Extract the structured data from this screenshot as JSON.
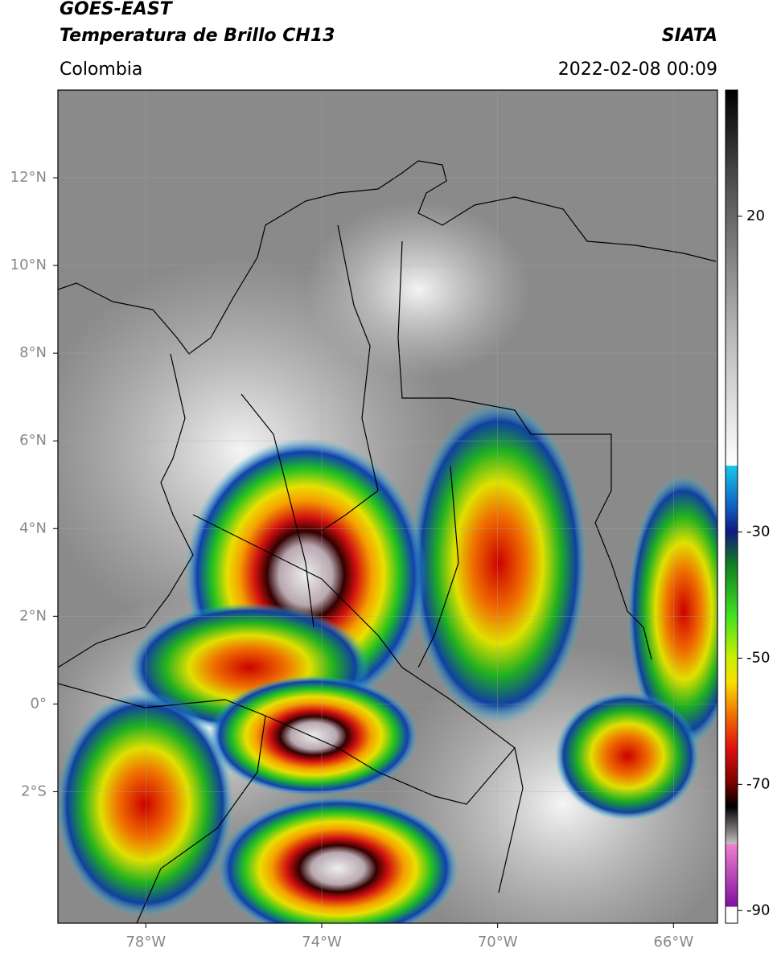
{
  "header": {
    "title": "GOES-EAST",
    "subtitle": "Temperatura de Brillo CH13",
    "source": "SIATA",
    "region": "Colombia",
    "datetime": "2022-02-08 00:09"
  },
  "map": {
    "xlim": [
      -80,
      -65
    ],
    "ylim": [
      -5,
      14
    ],
    "xticks": [
      {
        "value": -78,
        "label": "78°W"
      },
      {
        "value": -74,
        "label": "74°W"
      },
      {
        "value": -70,
        "label": "70°W"
      },
      {
        "value": -66,
        "label": "66°W"
      }
    ],
    "yticks": [
      {
        "value": 12,
        "label": "12°N"
      },
      {
        "value": 10,
        "label": "10°N"
      },
      {
        "value": 8,
        "label": "8°N"
      },
      {
        "value": 6,
        "label": "6°N"
      },
      {
        "value": 4,
        "label": "4°N"
      },
      {
        "value": 2,
        "label": "2°N"
      },
      {
        "value": 0,
        "label": "0°"
      },
      {
        "value": -2,
        "label": "2°S"
      }
    ],
    "grid": true
  },
  "colorbar": {
    "clim": [
      -92,
      40
    ],
    "ticks": [
      20,
      -30,
      -50,
      -70,
      -90
    ]
  }
}
